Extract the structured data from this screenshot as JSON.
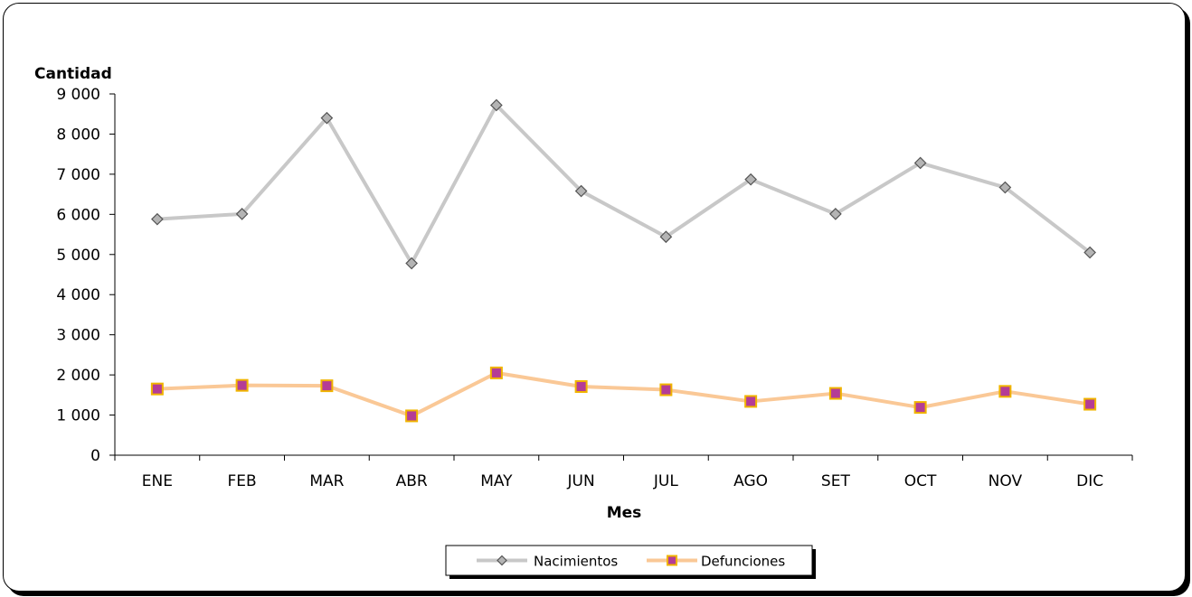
{
  "chart_data": {
    "type": "line",
    "xlabel": "Mes",
    "ylabel": "Cantidad",
    "categories": [
      "ENE",
      "FEB",
      "MAR",
      "ABR",
      "MAY",
      "JUN",
      "JUL",
      "AGO",
      "SET",
      "OCT",
      "NOV",
      "DIC"
    ],
    "ylim": [
      0,
      9000
    ],
    "yticks": [
      0,
      1000,
      2000,
      3000,
      4000,
      5000,
      6000,
      7000,
      8000,
      9000
    ],
    "ytick_labels": [
      "0",
      "1 000",
      "2 000",
      "3 000",
      "4 000",
      "5 000",
      "6 000",
      "7 000",
      "8 000",
      "9 000"
    ],
    "grid": false,
    "legend_position": "bottom-center",
    "series": [
      {
        "name": "Nacimientos",
        "values": [
          5880,
          6010,
          8400,
          4780,
          8720,
          6580,
          5440,
          6870,
          6010,
          7280,
          6670,
          5050
        ],
        "line_color": "#c8c8c8",
        "marker": "diamond",
        "marker_fill": "#b4b4b4",
        "marker_edge": "#555555"
      },
      {
        "name": "Defunciones",
        "values": [
          1650,
          1740,
          1730,
          980,
          2050,
          1710,
          1630,
          1340,
          1540,
          1190,
          1590,
          1270
        ],
        "line_color": "#fac896",
        "marker": "square",
        "marker_fill": "#b43c96",
        "marker_edge": "#f0b400"
      }
    ]
  }
}
